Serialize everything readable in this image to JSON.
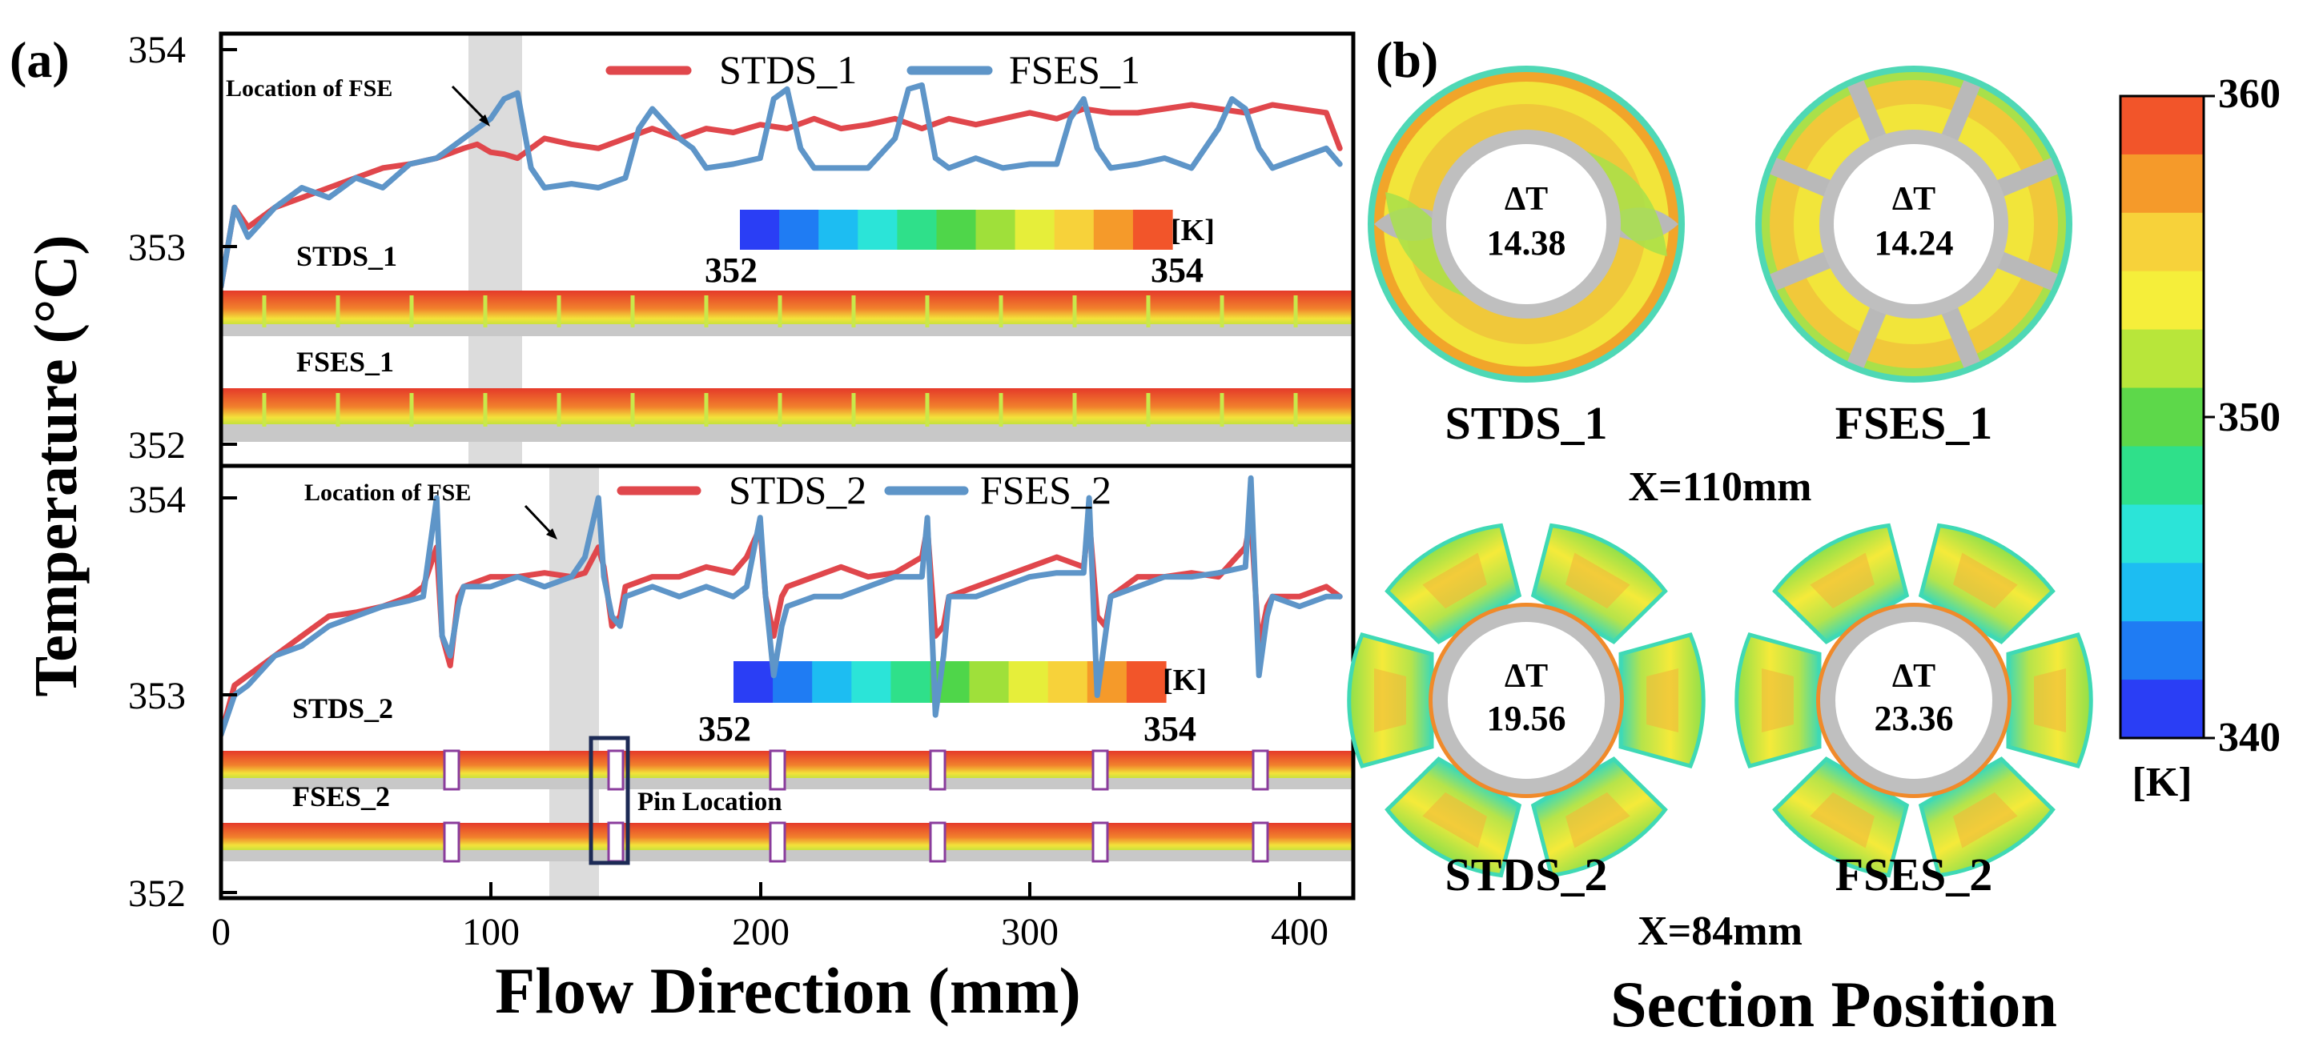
{
  "panel_a_label": "(a)",
  "panel_b_label": "(b)",
  "chart_data": [
    {
      "type": "line",
      "panel": "a-top",
      "series": [
        {
          "name": "STDS_1",
          "color": "#e0474c",
          "x": [
            0,
            5,
            10,
            20,
            30,
            40,
            50,
            60,
            70,
            80,
            90,
            95,
            100,
            105,
            110,
            120,
            130,
            140,
            150,
            160,
            170,
            180,
            190,
            200,
            210,
            220,
            230,
            240,
            250,
            260,
            270,
            280,
            290,
            300,
            310,
            320,
            330,
            340,
            350,
            360,
            370,
            380,
            390,
            400,
            410,
            415
          ],
          "values": [
            352.8,
            353.2,
            353.1,
            353.2,
            353.25,
            353.3,
            353.35,
            353.4,
            353.42,
            353.45,
            353.5,
            353.52,
            353.48,
            353.47,
            353.45,
            353.55,
            353.52,
            353.5,
            353.55,
            353.6,
            353.55,
            353.6,
            353.58,
            353.62,
            353.6,
            353.65,
            353.6,
            353.62,
            353.65,
            353.6,
            353.65,
            353.62,
            353.65,
            353.68,
            353.65,
            353.7,
            353.68,
            353.68,
            353.7,
            353.72,
            353.7,
            353.68,
            353.72,
            353.7,
            353.68,
            353.5
          ]
        },
        {
          "name": "FSES_1",
          "color": "#5e95c8",
          "x": [
            0,
            5,
            10,
            20,
            30,
            40,
            50,
            60,
            70,
            80,
            85,
            90,
            95,
            100,
            105,
            110,
            115,
            120,
            130,
            140,
            150,
            155,
            160,
            170,
            175,
            180,
            190,
            200,
            205,
            210,
            215,
            220,
            230,
            240,
            250,
            255,
            260,
            265,
            270,
            280,
            290,
            300,
            310,
            315,
            320,
            325,
            330,
            340,
            350,
            360,
            370,
            375,
            380,
            385,
            390,
            400,
            410,
            415
          ],
          "values": [
            352.8,
            353.2,
            353.05,
            353.2,
            353.3,
            353.25,
            353.35,
            353.3,
            353.42,
            353.45,
            353.5,
            353.55,
            353.6,
            353.65,
            353.75,
            353.78,
            353.4,
            353.3,
            353.32,
            353.3,
            353.35,
            353.6,
            353.7,
            353.55,
            353.5,
            353.4,
            353.42,
            353.45,
            353.75,
            353.8,
            353.5,
            353.4,
            353.4,
            353.4,
            353.55,
            353.8,
            353.82,
            353.45,
            353.4,
            353.45,
            353.4,
            353.42,
            353.42,
            353.65,
            353.75,
            353.5,
            353.4,
            353.42,
            353.45,
            353.4,
            353.6,
            353.75,
            353.7,
            353.5,
            353.4,
            353.45,
            353.5,
            353.42
          ]
        }
      ],
      "xlim": [
        0,
        420
      ],
      "ylim": [
        352,
        354
      ],
      "ylabel": "Temperature (°C)",
      "yticks": [
        "352",
        "353",
        "354"
      ],
      "shaded_region": [
        92,
        112
      ],
      "annotation": "Location of FSE",
      "strip_labels": [
        "STDS_1",
        "FSES_1"
      ],
      "colorbar": {
        "min": "352",
        "max": "354",
        "unit": "[K]"
      }
    },
    {
      "type": "line",
      "panel": "a-bottom",
      "series": [
        {
          "name": "STDS_2",
          "color": "#e0474c",
          "x": [
            0,
            5,
            10,
            20,
            30,
            40,
            50,
            60,
            70,
            75,
            80,
            82,
            85,
            88,
            90,
            100,
            110,
            120,
            130,
            135,
            140,
            142,
            145,
            148,
            150,
            160,
            170,
            180,
            190,
            195,
            200,
            202,
            205,
            208,
            210,
            220,
            230,
            240,
            250,
            260,
            262,
            265,
            268,
            270,
            280,
            290,
            300,
            310,
            320,
            322,
            325,
            328,
            330,
            340,
            350,
            360,
            370,
            380,
            382,
            385,
            388,
            390,
            400,
            410,
            415
          ],
          "values": [
            352.8,
            353.05,
            353.1,
            353.2,
            353.3,
            353.4,
            353.42,
            353.45,
            353.5,
            353.55,
            353.75,
            353.3,
            353.15,
            353.5,
            353.55,
            353.6,
            353.6,
            353.62,
            353.6,
            353.62,
            353.75,
            353.65,
            353.35,
            353.4,
            353.55,
            353.6,
            353.6,
            353.65,
            353.62,
            353.7,
            353.85,
            353.5,
            353.3,
            353.5,
            353.55,
            353.6,
            353.65,
            353.6,
            353.62,
            353.7,
            353.85,
            353.3,
            353.35,
            353.5,
            353.55,
            353.6,
            353.65,
            353.7,
            353.65,
            353.9,
            353.4,
            353.35,
            353.5,
            353.6,
            353.6,
            353.62,
            353.6,
            353.75,
            353.9,
            353.25,
            353.45,
            353.5,
            353.5,
            353.55,
            353.5
          ]
        },
        {
          "name": "FSES_2",
          "color": "#5e95c8",
          "x": [
            0,
            5,
            10,
            20,
            30,
            40,
            50,
            60,
            70,
            75,
            80,
            82,
            85,
            88,
            90,
            100,
            110,
            120,
            130,
            135,
            140,
            142,
            145,
            148,
            150,
            160,
            170,
            180,
            190,
            195,
            200,
            202,
            205,
            208,
            210,
            220,
            230,
            240,
            250,
            260,
            262,
            265,
            268,
            270,
            280,
            290,
            300,
            310,
            320,
            322,
            325,
            328,
            330,
            340,
            350,
            360,
            370,
            380,
            382,
            385,
            388,
            390,
            400,
            410,
            415
          ],
          "values": [
            352.8,
            353.0,
            353.05,
            353.2,
            353.25,
            353.35,
            353.4,
            353.45,
            353.48,
            353.5,
            354.0,
            353.3,
            353.2,
            353.45,
            353.55,
            353.55,
            353.6,
            353.55,
            353.6,
            353.7,
            354.0,
            353.6,
            353.4,
            353.35,
            353.5,
            353.55,
            353.5,
            353.55,
            353.5,
            353.55,
            353.9,
            353.5,
            353.1,
            353.35,
            353.45,
            353.5,
            353.5,
            353.55,
            353.6,
            353.6,
            353.9,
            352.9,
            353.2,
            353.5,
            353.5,
            353.55,
            353.6,
            353.62,
            353.62,
            354.0,
            353.0,
            353.3,
            353.5,
            353.55,
            353.6,
            353.6,
            353.62,
            353.65,
            354.1,
            353.1,
            353.4,
            353.5,
            353.45,
            353.5,
            353.5
          ]
        }
      ],
      "xlim": [
        0,
        420
      ],
      "ylim": [
        352,
        354
      ],
      "xlabel": "Flow Direction (mm)",
      "xticks": [
        "0",
        "100",
        "200",
        "300",
        "400"
      ],
      "yticks": [
        "352",
        "353",
        "354"
      ],
      "shaded_region": [
        122,
        140
      ],
      "annotation": "Location of FSE",
      "pin_label": "Pin Location",
      "strip_labels": [
        "STDS_2",
        "FSES_2"
      ],
      "colorbar": {
        "min": "352",
        "max": "354",
        "unit": "[K]"
      }
    },
    {
      "type": "heatmap",
      "panel": "b",
      "title": "Section Position",
      "sections": [
        {
          "name": "STDS_1",
          "dT_symbol": "ΔT",
          "dT": "14.38",
          "style": "annulus"
        },
        {
          "name": "FSES_1",
          "dT_symbol": "ΔT",
          "dT": "14.24",
          "style": "segmented-ring"
        },
        {
          "name": "STDS_2",
          "dT_symbol": "ΔT",
          "dT": "19.56",
          "style": "finned"
        },
        {
          "name": "FSES_2",
          "dT_symbol": "ΔT",
          "dT": "23.36",
          "style": "finned"
        }
      ],
      "row_labels": [
        "X=110mm",
        "X=84mm"
      ],
      "colorbar": {
        "min": 340,
        "max": 360,
        "mid": 350,
        "tick_labels": [
          "360",
          "350",
          "340"
        ],
        "unit": "[K]"
      }
    }
  ]
}
